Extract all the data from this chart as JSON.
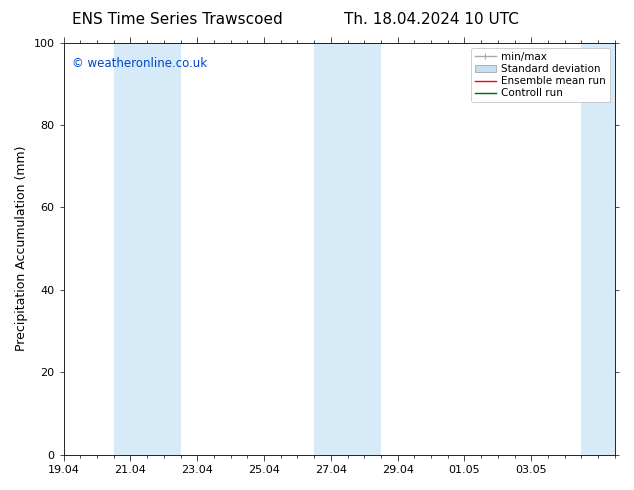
{
  "title_left": "ENS Time Series Trawscoed",
  "title_right": "Th. 18.04.2024 10 UTC",
  "ylabel": "Precipitation Accumulation (mm)",
  "watermark": "© weatheronline.co.uk",
  "ylim": [
    0,
    100
  ],
  "yticks": [
    0,
    20,
    40,
    60,
    80,
    100
  ],
  "xlim": [
    0,
    16.5
  ],
  "xtick_labels": [
    "19.04",
    "21.04",
    "23.04",
    "25.04",
    "27.04",
    "29.04",
    "01.05",
    "03.05"
  ],
  "xtick_positions": [
    0,
    2,
    4,
    6,
    8,
    10,
    12,
    14
  ],
  "shade_bands": [
    {
      "x_start": 1.5,
      "x_end": 3.5
    },
    {
      "x_start": 7.5,
      "x_end": 9.5
    },
    {
      "x_start": 15.5,
      "x_end": 16.5
    }
  ],
  "shade_color": "#d6eaf8",
  "background_color": "#ffffff",
  "legend_entries": [
    {
      "label": "min/max",
      "color": "#aaaaaa",
      "lw": 1
    },
    {
      "label": "Standard deviation",
      "color": "#c8dff0",
      "lw": 6
    },
    {
      "label": "Ensemble mean run",
      "color": "#ff0000",
      "lw": 1
    },
    {
      "label": "Controll run",
      "color": "#006600",
      "lw": 1
    }
  ],
  "watermark_color": "#0044cc",
  "title_fontsize": 11,
  "axis_label_fontsize": 9,
  "tick_fontsize": 8,
  "legend_fontsize": 7.5
}
